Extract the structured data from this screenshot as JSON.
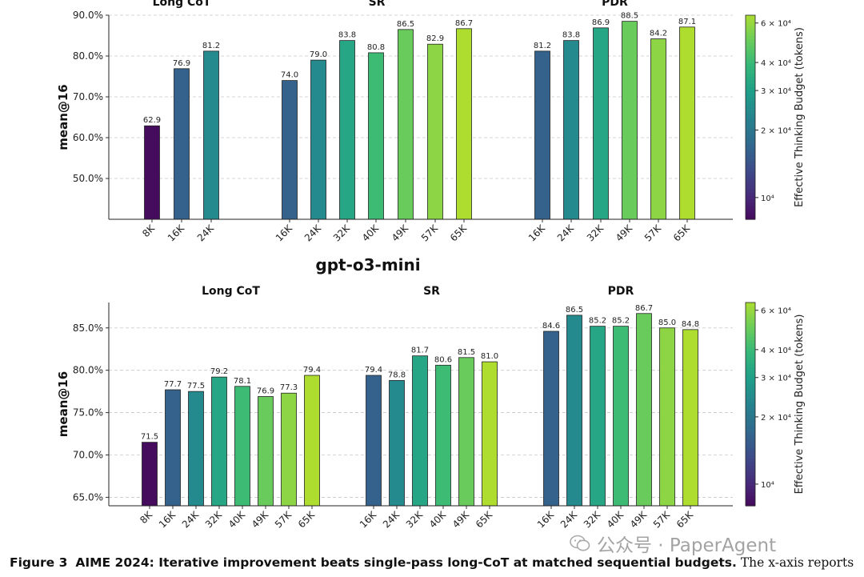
{
  "caption": {
    "label": "Figure 3",
    "bold_text": "AIME 2024: Iterative improvement beats single-pass long-CoT at matched sequential budgets.",
    "rest_text": " The x-axis reports"
  },
  "watermark": {
    "icon": "wechat-icon",
    "text": "公众号 · PaperAgent"
  },
  "colorbar": {
    "label": "Effective Thinking Budget (tokens)",
    "ticks": [
      {
        "value": 10000,
        "label": "10⁴"
      },
      {
        "value": 20000,
        "label": "2 × 10⁴"
      },
      {
        "value": 30000,
        "label": "3 × 10⁴"
      },
      {
        "value": 40000,
        "label": "4 × 10⁴"
      },
      {
        "value": 60000,
        "label": "6 × 10⁴"
      }
    ],
    "range": [
      8000,
      65000
    ]
  },
  "chart_data": [
    {
      "type": "bar",
      "title": "",
      "ylabel": "mean@16",
      "ylim": [
        40,
        90
      ],
      "yticks": [
        50,
        60,
        70,
        80,
        90
      ],
      "yticklabels": [
        "50.0%",
        "60.0%",
        "70.0%",
        "80.0%",
        "90.0%"
      ],
      "groups": [
        {
          "name": "Long CoT",
          "categories": [
            "8K",
            "16K",
            "24K"
          ],
          "budgets": [
            8000,
            16000,
            24000
          ],
          "values": [
            62.9,
            76.9,
            81.2
          ]
        },
        {
          "name": "SR",
          "categories": [
            "16K",
            "24K",
            "32K",
            "40K",
            "49K",
            "57K",
            "65K"
          ],
          "budgets": [
            16000,
            24000,
            32000,
            40000,
            49000,
            57000,
            65000
          ],
          "values": [
            74.0,
            79.0,
            83.8,
            80.8,
            86.5,
            82.9,
            86.7
          ]
        },
        {
          "name": "PDR",
          "categories": [
            "16K",
            "24K",
            "32K",
            "49K",
            "57K",
            "65K"
          ],
          "budgets": [
            16000,
            24000,
            32000,
            49000,
            57000,
            65000
          ],
          "values": [
            81.2,
            83.8,
            86.9,
            88.5,
            84.2,
            87.1
          ]
        }
      ]
    },
    {
      "type": "bar",
      "title": "gpt-o3-mini",
      "ylabel": "mean@16",
      "ylim": [
        64,
        88
      ],
      "yticks": [
        65,
        70,
        75,
        80,
        85
      ],
      "yticklabels": [
        "65.0%",
        "70.0%",
        "75.0%",
        "80.0%",
        "85.0%"
      ],
      "groups": [
        {
          "name": "Long CoT",
          "categories": [
            "8K",
            "16K",
            "24K",
            "32K",
            "40K",
            "49K",
            "57K",
            "65K"
          ],
          "budgets": [
            8000,
            16000,
            24000,
            32000,
            40000,
            49000,
            57000,
            65000
          ],
          "values": [
            71.5,
            77.7,
            77.5,
            79.2,
            78.1,
            76.9,
            77.3,
            79.4
          ]
        },
        {
          "name": "SR",
          "categories": [
            "16K",
            "24K",
            "32K",
            "40K",
            "49K",
            "65K"
          ],
          "budgets": [
            16000,
            24000,
            32000,
            40000,
            49000,
            65000
          ],
          "values": [
            79.4,
            78.8,
            81.7,
            80.6,
            81.5,
            81.0
          ]
        },
        {
          "name": "PDR",
          "categories": [
            "16K",
            "24K",
            "32K",
            "40K",
            "49K",
            "57K",
            "65K"
          ],
          "budgets": [
            16000,
            24000,
            32000,
            40000,
            49000,
            57000,
            65000
          ],
          "values": [
            84.6,
            86.5,
            85.2,
            85.2,
            86.7,
            85.0,
            84.8
          ]
        }
      ]
    }
  ]
}
